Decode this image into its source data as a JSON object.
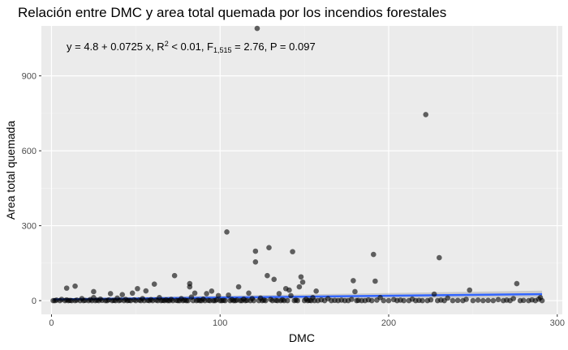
{
  "chart_data": {
    "type": "scatter",
    "title": "Relación entre DMC y area total quemada por los incendios forestales",
    "xlabel": "DMC",
    "ylabel": "Area total quemada",
    "xlim": [
      -6,
      303
    ],
    "ylim": [
      -55,
      1100
    ],
    "x_ticks": [
      0,
      100,
      200,
      300
    ],
    "y_ticks": [
      0,
      300,
      600,
      900
    ],
    "grid": true,
    "annotation": {
      "p1": "y = 4.8 + 0.0725 x, R",
      "p2": "2",
      "p3": " < 0.01, F",
      "p4": "1,515",
      "p5": " = 2.76, P = 0.097"
    },
    "fit": {
      "intercept": 4.8,
      "slope": 0.0725,
      "x_range": [
        1,
        291
      ],
      "color": "#3366FF"
    },
    "points": [
      [
        1,
        0
      ],
      [
        2,
        0
      ],
      [
        3,
        2
      ],
      [
        5,
        0
      ],
      [
        6,
        5
      ],
      [
        8,
        0
      ],
      [
        9,
        3
      ],
      [
        9,
        50
      ],
      [
        10,
        0
      ],
      [
        11,
        1
      ],
      [
        12,
        0
      ],
      [
        14,
        0
      ],
      [
        14,
        58
      ],
      [
        15,
        2
      ],
      [
        17,
        0
      ],
      [
        18,
        8
      ],
      [
        19,
        0
      ],
      [
        20,
        1
      ],
      [
        22,
        0
      ],
      [
        23,
        4
      ],
      [
        24,
        0
      ],
      [
        25,
        36
      ],
      [
        25,
        12
      ],
      [
        26,
        0
      ],
      [
        27,
        2
      ],
      [
        28,
        0
      ],
      [
        29,
        6
      ],
      [
        30,
        1
      ],
      [
        32,
        0
      ],
      [
        33,
        0
      ],
      [
        34,
        3
      ],
      [
        35,
        28
      ],
      [
        36,
        0
      ],
      [
        37,
        1
      ],
      [
        38,
        0
      ],
      [
        39,
        10
      ],
      [
        40,
        0
      ],
      [
        41,
        2
      ],
      [
        42,
        24
      ],
      [
        43,
        0
      ],
      [
        44,
        5
      ],
      [
        45,
        0
      ],
      [
        46,
        1
      ],
      [
        47,
        0
      ],
      [
        48,
        30
      ],
      [
        49,
        3
      ],
      [
        50,
        0
      ],
      [
        51,
        48
      ],
      [
        52,
        2
      ],
      [
        53,
        0
      ],
      [
        54,
        8
      ],
      [
        55,
        0
      ],
      [
        56,
        39
      ],
      [
        57,
        1
      ],
      [
        58,
        0
      ],
      [
        59,
        4
      ],
      [
        60,
        0
      ],
      [
        61,
        66
      ],
      [
        62,
        2
      ],
      [
        63,
        0
      ],
      [
        64,
        12
      ],
      [
        65,
        0
      ],
      [
        66,
        1
      ],
      [
        67,
        0
      ],
      [
        68,
        3
      ],
      [
        69,
        0
      ],
      [
        70,
        0
      ],
      [
        71,
        5
      ],
      [
        72,
        0
      ],
      [
        73,
        100
      ],
      [
        74,
        1
      ],
      [
        75,
        0
      ],
      [
        76,
        0
      ],
      [
        77,
        8
      ],
      [
        78,
        0
      ],
      [
        79,
        2
      ],
      [
        80,
        0
      ],
      [
        81,
        0
      ],
      [
        82,
        68
      ],
      [
        82,
        55
      ],
      [
        83,
        14
      ],
      [
        84,
        0
      ],
      [
        85,
        30
      ],
      [
        86,
        0
      ],
      [
        87,
        2
      ],
      [
        88,
        0
      ],
      [
        89,
        0
      ],
      [
        90,
        6
      ],
      [
        91,
        0
      ],
      [
        92,
        28
      ],
      [
        93,
        1
      ],
      [
        94,
        0
      ],
      [
        95,
        38
      ],
      [
        96,
        0
      ],
      [
        97,
        0
      ],
      [
        98,
        3
      ],
      [
        99,
        20
      ],
      [
        100,
        0
      ],
      [
        101,
        0
      ],
      [
        102,
        1
      ],
      [
        103,
        0
      ],
      [
        104,
        275
      ],
      [
        105,
        22
      ],
      [
        106,
        0
      ],
      [
        107,
        4
      ],
      [
        108,
        0
      ],
      [
        109,
        0
      ],
      [
        110,
        2
      ],
      [
        111,
        55
      ],
      [
        112,
        0
      ],
      [
        113,
        0
      ],
      [
        114,
        6
      ],
      [
        115,
        0
      ],
      [
        116,
        1
      ],
      [
        117,
        30
      ],
      [
        118,
        0
      ],
      [
        119,
        8
      ],
      [
        120,
        0
      ],
      [
        121,
        198
      ],
      [
        121,
        155
      ],
      [
        122,
        1090
      ],
      [
        123,
        0
      ],
      [
        124,
        10
      ],
      [
        125,
        0
      ],
      [
        126,
        2
      ],
      [
        127,
        0
      ],
      [
        128,
        100
      ],
      [
        129,
        212
      ],
      [
        130,
        5
      ],
      [
        131,
        0
      ],
      [
        132,
        85
      ],
      [
        133,
        1
      ],
      [
        134,
        0
      ],
      [
        135,
        28
      ],
      [
        136,
        0
      ],
      [
        137,
        3
      ],
      [
        138,
        0
      ],
      [
        139,
        48
      ],
      [
        140,
        0
      ],
      [
        141,
        42
      ],
      [
        142,
        20
      ],
      [
        143,
        196
      ],
      [
        144,
        0
      ],
      [
        145,
        2
      ],
      [
        146,
        0
      ],
      [
        147,
        55
      ],
      [
        148,
        95
      ],
      [
        149,
        74
      ],
      [
        150,
        0
      ],
      [
        151,
        6
      ],
      [
        152,
        0
      ],
      [
        153,
        1
      ],
      [
        154,
        0
      ],
      [
        155,
        12
      ],
      [
        156,
        0
      ],
      [
        157,
        38
      ],
      [
        158,
        0
      ],
      [
        160,
        3
      ],
      [
        162,
        0
      ],
      [
        164,
        8
      ],
      [
        166,
        0
      ],
      [
        168,
        1
      ],
      [
        170,
        0
      ],
      [
        172,
        2
      ],
      [
        174,
        0
      ],
      [
        176,
        0
      ],
      [
        178,
        5
      ],
      [
        179,
        80
      ],
      [
        180,
        36
      ],
      [
        181,
        0
      ],
      [
        182,
        1
      ],
      [
        184,
        0
      ],
      [
        186,
        0
      ],
      [
        188,
        3
      ],
      [
        190,
        0
      ],
      [
        191,
        185
      ],
      [
        192,
        78
      ],
      [
        193,
        2
      ],
      [
        195,
        12
      ],
      [
        197,
        0
      ],
      [
        200,
        0
      ],
      [
        203,
        4
      ],
      [
        205,
        0
      ],
      [
        207,
        2
      ],
      [
        209,
        0
      ],
      [
        212,
        0
      ],
      [
        214,
        6
      ],
      [
        216,
        0
      ],
      [
        218,
        1
      ],
      [
        220,
        0
      ],
      [
        222,
        745
      ],
      [
        223,
        0
      ],
      [
        225,
        3
      ],
      [
        227,
        26
      ],
      [
        229,
        0
      ],
      [
        230,
        172
      ],
      [
        231,
        2
      ],
      [
        233,
        0
      ],
      [
        235,
        10
      ],
      [
        238,
        0
      ],
      [
        241,
        1
      ],
      [
        244,
        0
      ],
      [
        246,
        5
      ],
      [
        248,
        42
      ],
      [
        250,
        0
      ],
      [
        253,
        2
      ],
      [
        256,
        0
      ],
      [
        259,
        1
      ],
      [
        262,
        0
      ],
      [
        265,
        4
      ],
      [
        268,
        0
      ],
      [
        270,
        2
      ],
      [
        272,
        0
      ],
      [
        274,
        8
      ],
      [
        276,
        68
      ],
      [
        278,
        0
      ],
      [
        280,
        1
      ],
      [
        283,
        0
      ],
      [
        285,
        3
      ],
      [
        287,
        0
      ],
      [
        289,
        6
      ],
      [
        290,
        12
      ],
      [
        291,
        0
      ]
    ]
  }
}
